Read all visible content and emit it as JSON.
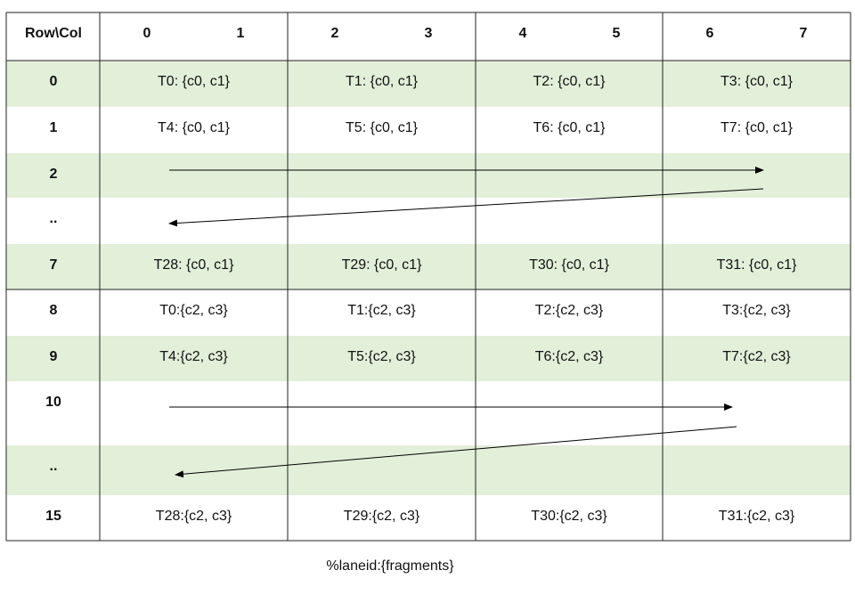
{
  "header": {
    "corner": "Row\\Col",
    "columns": [
      "0",
      "1",
      "2",
      "3",
      "4",
      "5",
      "6",
      "7"
    ]
  },
  "rows": [
    {
      "label": "0",
      "cells": [
        "T0: {c0, c1}",
        "T1: {c0, c1}",
        "T2: {c0, c1}",
        "T3: {c0, c1}"
      ]
    },
    {
      "label": "1",
      "cells": [
        "T4: {c0, c1}",
        "T5: {c0, c1}",
        "T6: {c0, c1}",
        "T7: {c0, c1}"
      ]
    },
    {
      "label": "2",
      "cells": []
    },
    {
      "label": "..",
      "cells": []
    },
    {
      "label": "7",
      "cells": [
        "T28: {c0, c1}",
        "T29: {c0, c1}",
        "T30: {c0, c1}",
        "T31: {c0, c1}"
      ]
    },
    {
      "label": "8",
      "cells": [
        "T0:{c2, c3}",
        "T1:{c2, c3}",
        "T2:{c2, c3}",
        "T3:{c2, c3}"
      ]
    },
    {
      "label": "9",
      "cells": [
        "T4:{c2, c3}",
        "T5:{c2, c3}",
        "T6:{c2, c3}",
        "T7:{c2, c3}"
      ]
    },
    {
      "label": "10",
      "cells": []
    },
    {
      "label": "..",
      "cells": []
    },
    {
      "label": "15",
      "cells": [
        "T28:{c2, c3}",
        "T29:{c2, c3}",
        "T30:{c2, c3}",
        "T31:{c2, c3}"
      ]
    }
  ],
  "caption": "%laneid:{fragments}"
}
